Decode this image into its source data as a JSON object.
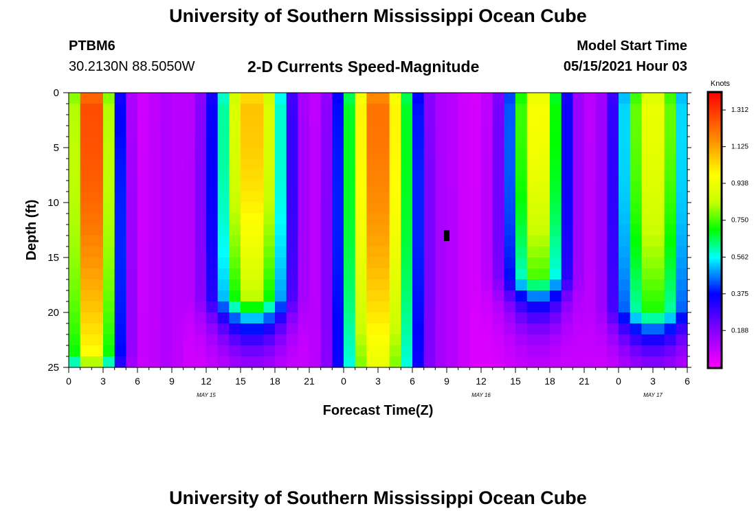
{
  "header": {
    "title": "University of Southern Mississippi Ocean Cube",
    "station_id": "PTBM6",
    "coordinates": "30.2130N  88.5050W",
    "subtitle": "2-D Currents Speed-Magnitude",
    "model_start_label": "Model Start Time",
    "model_start_value": "05/15/2021 Hour 03"
  },
  "footer": {
    "title": "University of Southern Mississippi Ocean Cube"
  },
  "chart_data": {
    "type": "heatmap",
    "xlabel": "Forecast Time(Z)",
    "ylabel": "Depth (ft)",
    "x_range_hours": [
      0,
      54
    ],
    "y_range_ft": [
      0,
      25
    ],
    "x_ticks": [
      {
        "h": 0,
        "label": "0"
      },
      {
        "h": 3,
        "label": "3"
      },
      {
        "h": 6,
        "label": "6"
      },
      {
        "h": 9,
        "label": "9"
      },
      {
        "h": 12,
        "label": "12"
      },
      {
        "h": 15,
        "label": "15"
      },
      {
        "h": 18,
        "label": "18"
      },
      {
        "h": 21,
        "label": "21"
      },
      {
        "h": 24,
        "label": "0"
      },
      {
        "h": 27,
        "label": "3"
      },
      {
        "h": 30,
        "label": "6"
      },
      {
        "h": 33,
        "label": "9"
      },
      {
        "h": 36,
        "label": "12"
      },
      {
        "h": 39,
        "label": "15"
      },
      {
        "h": 42,
        "label": "18"
      },
      {
        "h": 45,
        "label": "21"
      },
      {
        "h": 48,
        "label": "0"
      },
      {
        "h": 51,
        "label": "3"
      },
      {
        "h": 54,
        "label": "6"
      }
    ],
    "y_ticks": [
      {
        "d": 0,
        "label": "0"
      },
      {
        "d": 5,
        "label": "5"
      },
      {
        "d": 10,
        "label": "10"
      },
      {
        "d": 15,
        "label": "15"
      },
      {
        "d": 20,
        "label": "20"
      },
      {
        "d": 25,
        "label": "25"
      }
    ],
    "date_labels": [
      {
        "h": 12,
        "label": "MAY 15"
      },
      {
        "h": 36,
        "label": "MAY 16"
      },
      {
        "h": 51,
        "label": "MAY 17"
      }
    ],
    "colorbar": {
      "unit_label": "Knots",
      "min": 0.0,
      "max": 1.4,
      "tick_values": [
        1.312,
        1.125,
        0.938,
        0.75,
        0.562,
        0.375,
        0.188
      ],
      "tick_labels": [
        "1.312",
        "1.125",
        "0.938",
        "0.750",
        "0.562",
        "0.375",
        "0.188"
      ]
    },
    "cells_x": 54,
    "cells_y": 25,
    "speed_peaks": [
      {
        "center_h": 2,
        "peak_knots": 1.28,
        "half_width_h": 2.0,
        "depth_reach_ft": 24
      },
      {
        "center_h": 16,
        "peak_knots": 1.05,
        "half_width_h": 3.0,
        "depth_reach_ft": 19
      },
      {
        "center_h": 27,
        "peak_knots": 1.18,
        "half_width_h": 3.0,
        "depth_reach_ft": 25
      },
      {
        "center_h": 41,
        "peak_knots": 0.95,
        "half_width_h": 2.5,
        "depth_reach_ft": 17
      },
      {
        "center_h": 51,
        "peak_knots": 0.9,
        "half_width_h": 3.0,
        "depth_reach_ft": 20
      }
    ],
    "slack_minima": [
      {
        "center_h": 8.5,
        "min_knots": 0.12
      },
      {
        "center_h": 21,
        "min_knots": 0.05
      },
      {
        "center_h": 33,
        "min_knots": 0.1
      },
      {
        "center_h": 45,
        "min_knots": 0.06
      }
    ],
    "marker": {
      "h": 33,
      "depth_ft": 13,
      "description": "black square"
    }
  }
}
